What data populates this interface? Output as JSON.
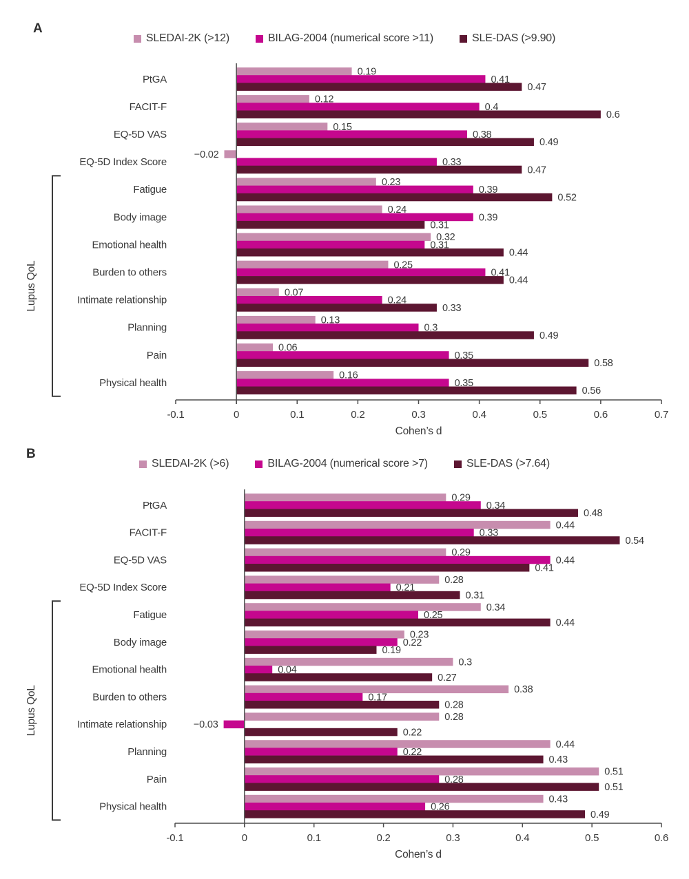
{
  "figure_type": "grouped horizontal bar charts, two panels",
  "chart_data": [
    {
      "type": "bar",
      "panel": "A",
      "orientation": "horizontal",
      "legend_position": "top-center",
      "grid": false,
      "categories": [
        "PtGA",
        "FACIT-F",
        "EQ-5D VAS",
        "EQ-5D Index Score",
        "Fatigue",
        "Body image",
        "Emotional health",
        "Burden to others",
        "Intimate relationship",
        "Planning",
        "Pain",
        "Physical health"
      ],
      "series": [
        {
          "name": "SLEDAI-2K (>12)",
          "color": "#c78dae",
          "values": [
            0.19,
            0.12,
            0.15,
            -0.02,
            0.23,
            0.24,
            0.32,
            0.25,
            0.07,
            0.13,
            0.06,
            0.16
          ]
        },
        {
          "name": "BILAG-2004 (numerical score >11)",
          "color": "#c5078e",
          "values": [
            0.41,
            0.4,
            0.38,
            0.33,
            0.39,
            0.39,
            0.31,
            0.41,
            0.24,
            0.3,
            0.35,
            0.35
          ]
        },
        {
          "name": "SLE-DAS (>9.90)",
          "color": "#5c1631",
          "values": [
            0.47,
            0.6,
            0.49,
            0.47,
            0.52,
            0.31,
            0.44,
            0.44,
            0.33,
            0.49,
            0.58,
            0.56
          ]
        }
      ],
      "xlabel": "Cohen’s d",
      "xlim": [
        -0.1,
        0.7
      ],
      "xticks": [
        -0.1,
        0,
        0.1,
        0.2,
        0.3,
        0.4,
        0.5,
        0.6,
        0.7
      ],
      "group_bracket": {
        "label": "Lupus QoL",
        "from": "Fatigue",
        "to": "Physical health"
      }
    },
    {
      "type": "bar",
      "panel": "B",
      "orientation": "horizontal",
      "legend_position": "top-center",
      "grid": false,
      "categories": [
        "PtGA",
        "FACIT-F",
        "EQ-5D VAS",
        "EQ-5D Index Score",
        "Fatigue",
        "Body image",
        "Emotional health",
        "Burden to others",
        "Intimate relationship",
        "Planning",
        "Pain",
        "Physical health"
      ],
      "series": [
        {
          "name": "SLEDAI-2K (>6)",
          "color": "#c78dae",
          "values": [
            0.29,
            0.44,
            0.29,
            0.28,
            0.34,
            0.23,
            0.3,
            0.38,
            0.28,
            0.44,
            0.51,
            0.43
          ]
        },
        {
          "name": "BILAG-2004 (numerical score >7)",
          "color": "#c5078e",
          "values": [
            0.34,
            0.33,
            0.44,
            0.21,
            0.25,
            0.22,
            0.04,
            0.17,
            -0.03,
            0.22,
            0.28,
            0.26
          ]
        },
        {
          "name": "SLE-DAS (>7.64)",
          "color": "#5c1631",
          "values": [
            0.48,
            0.54,
            0.41,
            0.31,
            0.44,
            0.19,
            0.27,
            0.28,
            0.22,
            0.43,
            0.51,
            0.49
          ]
        }
      ],
      "xlabel": "Cohen’s d",
      "xlim": [
        -0.1,
        0.6
      ],
      "xticks": [
        -0.1,
        0,
        0.1,
        0.2,
        0.3,
        0.4,
        0.5,
        0.6
      ],
      "group_bracket": {
        "label": "Lupus QoL",
        "from": "Fatigue",
        "to": "Physical health"
      }
    }
  ],
  "colors": {
    "series_sledai": "#c78dae",
    "series_bilag": "#c5078e",
    "series_sledas": "#5c1631",
    "axis": "#4d4d4d",
    "text": "#3a3a3a"
  }
}
